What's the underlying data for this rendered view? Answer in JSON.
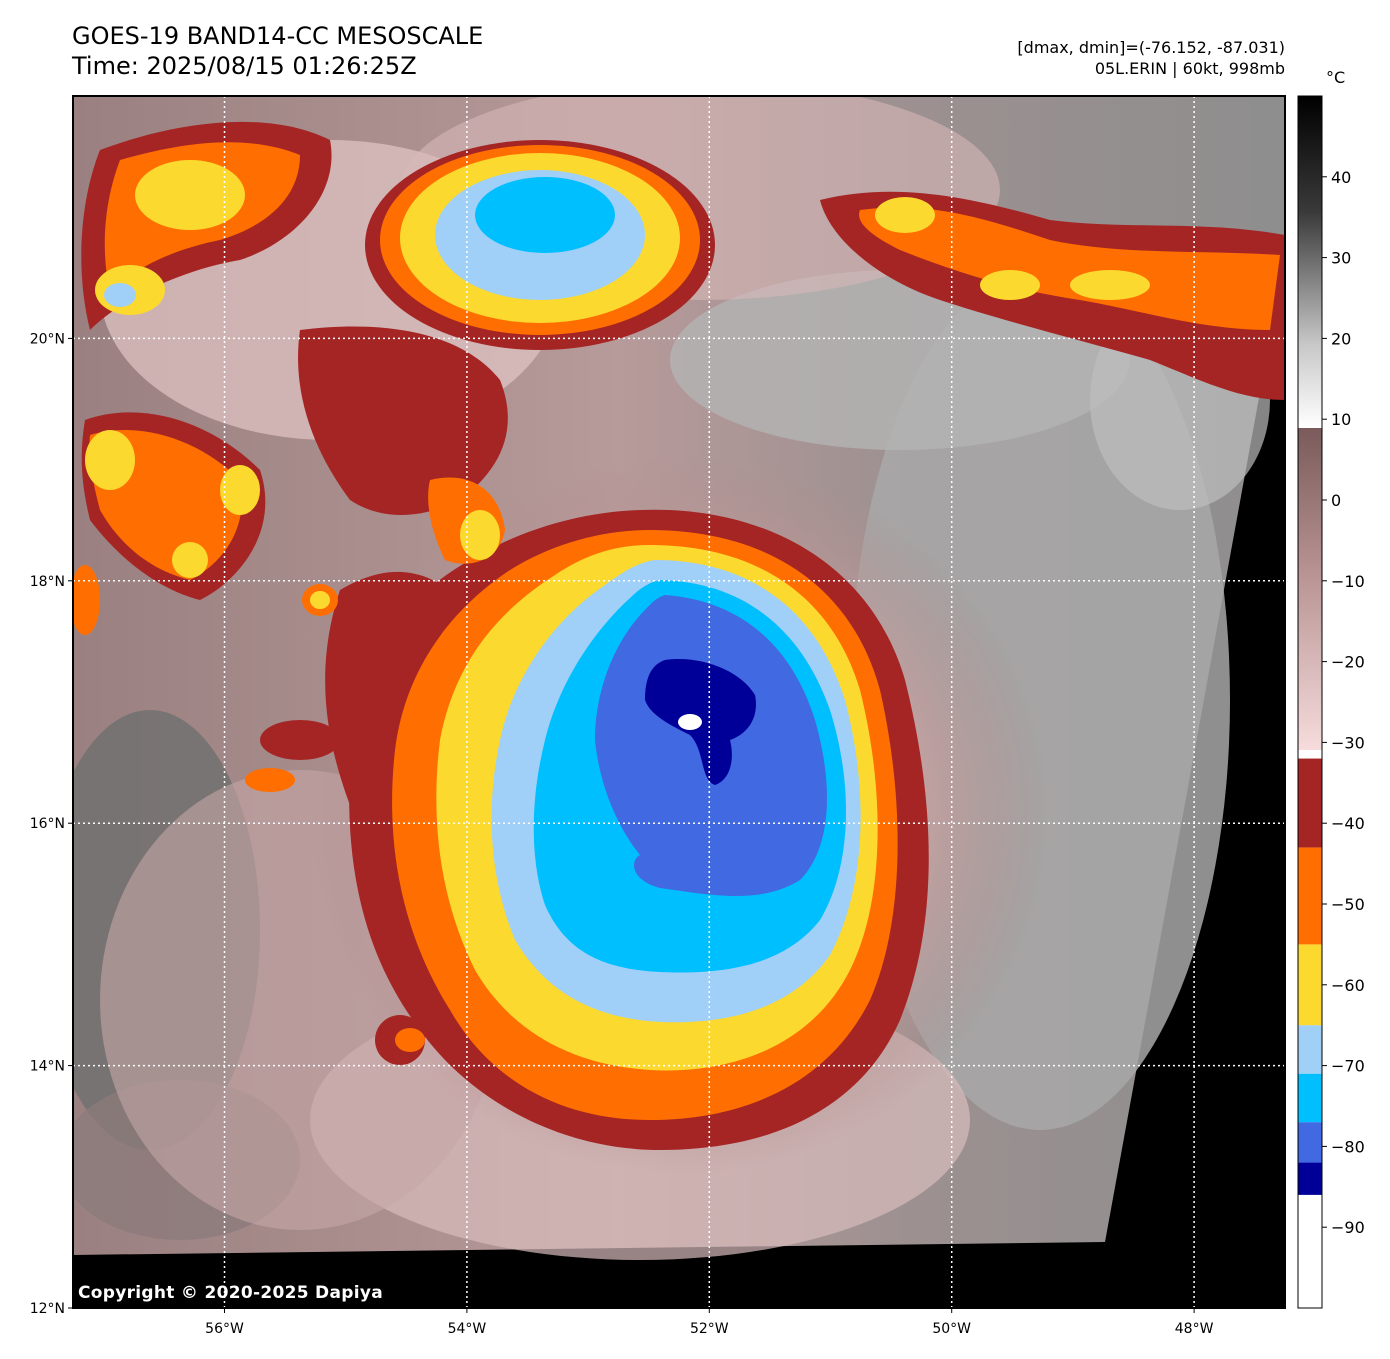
{
  "header": {
    "title_line1": "GOES-19 BAND14-CC MESOSCALE",
    "title_line2": "Time: 2025/08/15 01:26:25Z",
    "info_line1": "[dmax, dmin]=(-76.152, -87.031)",
    "info_line2": "05L.ERIN | 60kt, 998mb"
  },
  "map": {
    "lon_range": [
      -57.25,
      -47.25
    ],
    "lat_range": [
      12.0,
      22.0
    ],
    "lon_ticks": [
      {
        "value": -56,
        "label": "56°W"
      },
      {
        "value": -54,
        "label": "54°W"
      },
      {
        "value": -52,
        "label": "52°W"
      },
      {
        "value": -50,
        "label": "50°W"
      },
      {
        "value": -48,
        "label": "48°W"
      }
    ],
    "lat_ticks": [
      {
        "value": 12,
        "label": "12°N"
      },
      {
        "value": 14,
        "label": "14°N"
      },
      {
        "value": 16,
        "label": "16°N"
      },
      {
        "value": 18,
        "label": "18°N"
      },
      {
        "value": 20,
        "label": "20°N"
      }
    ],
    "storm_center": {
      "lon": -51.9,
      "lat": 16.85
    },
    "gridlines": true
  },
  "colorbar": {
    "unit": "°C",
    "range": [
      -100,
      50
    ],
    "ticks": [
      {
        "value": 40,
        "label": "40"
      },
      {
        "value": 30,
        "label": "30"
      },
      {
        "value": 20,
        "label": "20"
      },
      {
        "value": 10,
        "label": "10"
      },
      {
        "value": 0,
        "label": "0"
      },
      {
        "value": -10,
        "label": "−10"
      },
      {
        "value": -20,
        "label": "−20"
      },
      {
        "value": -30,
        "label": "−30"
      },
      {
        "value": -40,
        "label": "−40"
      },
      {
        "value": -50,
        "label": "−50"
      },
      {
        "value": -60,
        "label": "−60"
      },
      {
        "value": -70,
        "label": "−70"
      },
      {
        "value": -80,
        "label": "−80"
      },
      {
        "value": -90,
        "label": "−90"
      }
    ],
    "bands": [
      {
        "from": -100,
        "to": -86,
        "color": "#ffffff"
      },
      {
        "from": -86,
        "to": -82,
        "color": "#000099"
      },
      {
        "from": -82,
        "to": -77,
        "color": "#4169e1"
      },
      {
        "from": -77,
        "to": -71,
        "color": "#00bfff"
      },
      {
        "from": -71,
        "to": -65,
        "color": "#a0cff8"
      },
      {
        "from": -65,
        "to": -55,
        "color": "#fbd92e"
      },
      {
        "from": -55,
        "to": -43,
        "color": "#ff6e00"
      },
      {
        "from": -43,
        "to": -32,
        "color": "#a52525"
      }
    ]
  },
  "copyright": "Copyright © 2020-2025 Dapiya"
}
